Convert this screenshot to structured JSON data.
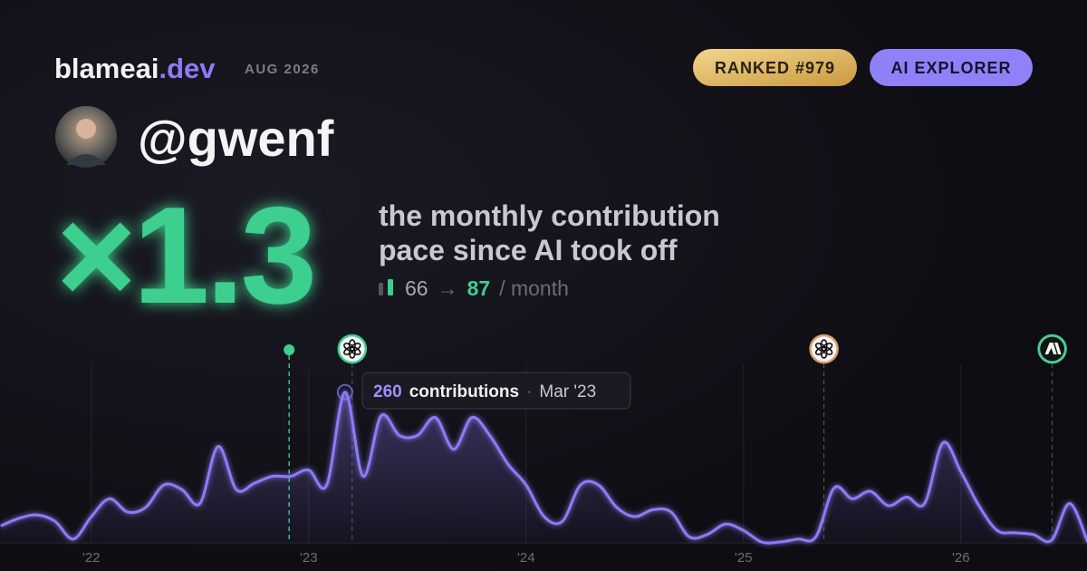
{
  "header": {
    "brand": "blameai",
    "brand_tld": ".dev",
    "date": "AUG 2026",
    "badges": [
      "RANKED #979",
      "AI EXPLORER"
    ]
  },
  "profile": {
    "handle": "@gwenf"
  },
  "headline": {
    "multiplier": "×1.3",
    "caption_lines": [
      "the monthly contribution",
      "pace since AI took off"
    ],
    "before": "66",
    "arrow": "→",
    "after": "87",
    "unit": "/ month"
  },
  "tooltip": {
    "label": "contributions",
    "separator": "·",
    "date": "Mar '23"
  },
  "chart_data": {
    "type": "area",
    "color": "#8b7cf6",
    "x": [
      2021.583,
      2021.667,
      2021.75,
      2021.833,
      2021.917,
      2022,
      2022.083,
      2022.167,
      2022.25,
      2022.333,
      2022.417,
      2022.5,
      2022.583,
      2022.667,
      2022.75,
      2022.833,
      2022.917,
      2023,
      2023.083,
      2023.167,
      2023.25,
      2023.333,
      2023.417,
      2023.5,
      2023.583,
      2023.667,
      2023.75,
      2023.833,
      2023.917,
      2024,
      2024.083,
      2024.167,
      2024.25,
      2024.333,
      2024.417,
      2024.5,
      2024.583,
      2024.667,
      2024.75,
      2024.833,
      2024.917,
      2025,
      2025.083,
      2025.167,
      2025.25,
      2025.333,
      2025.417,
      2025.5,
      2025.583,
      2025.667,
      2025.75,
      2025.833,
      2025.917,
      2026,
      2026.083,
      2026.167,
      2026.25,
      2026.333,
      2026.417,
      2026.5,
      2026.583
    ],
    "values": [
      28,
      41,
      47,
      36,
      5,
      44,
      75,
      52,
      60,
      99,
      91,
      67,
      166,
      91,
      102,
      114,
      114,
      125,
      99,
      260,
      114,
      219,
      185,
      185,
      216,
      161,
      216,
      185,
      135,
      99,
      44,
      36,
      99,
      99,
      60,
      44,
      56,
      52,
      9,
      13,
      31,
      20,
      0,
      0,
      5,
      9,
      94,
      75,
      88,
      63,
      78,
      67,
      172,
      122,
      63,
      20,
      16,
      13,
      3,
      67,
      0
    ],
    "xlim": [
      2021.58,
      2026.58
    ],
    "ylim": [
      0,
      280
    ],
    "xticks": [
      {
        "value": 2022,
        "label": "'22"
      },
      {
        "value": 2023,
        "label": "'23"
      },
      {
        "value": 2024,
        "label": "'24"
      },
      {
        "value": 2025,
        "label": "'25"
      },
      {
        "value": 2026,
        "label": "'26"
      }
    ],
    "grid": true,
    "events": [
      {
        "x": 2022.91,
        "icon": "dot",
        "color": "#3ecf8e"
      },
      {
        "x": 2023.2,
        "icon": "openai",
        "color": "#3ecf8e"
      },
      {
        "x": 2025.37,
        "icon": "openai",
        "color": "#d9a066"
      },
      {
        "x": 2026.42,
        "icon": "anthropic",
        "color": "#3ecf8e"
      }
    ]
  }
}
